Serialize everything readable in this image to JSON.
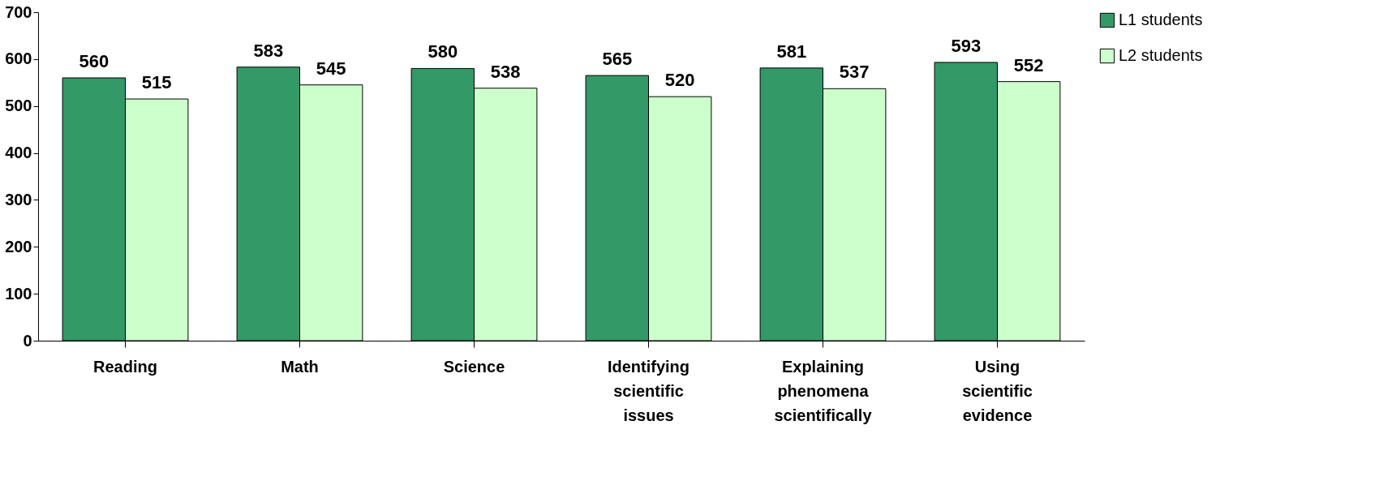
{
  "chart_data": {
    "type": "bar",
    "categories": [
      "Reading",
      "Math",
      "Science",
      "Identifying scientific issues",
      "Explaining phenomena scientifically",
      "Using scientific evidence"
    ],
    "series": [
      {
        "name": "L1 students",
        "color": "#339966",
        "values": [
          560,
          583,
          580,
          565,
          581,
          593
        ]
      },
      {
        "name": "L2 students",
        "color": "#ccffcc",
        "values": [
          515,
          545,
          538,
          520,
          537,
          552
        ]
      }
    ],
    "ylim": [
      0,
      700
    ],
    "yticks": [
      0,
      100,
      200,
      300,
      400,
      500,
      600,
      700
    ],
    "grid": false,
    "legend": "right",
    "data_labels": true
  }
}
